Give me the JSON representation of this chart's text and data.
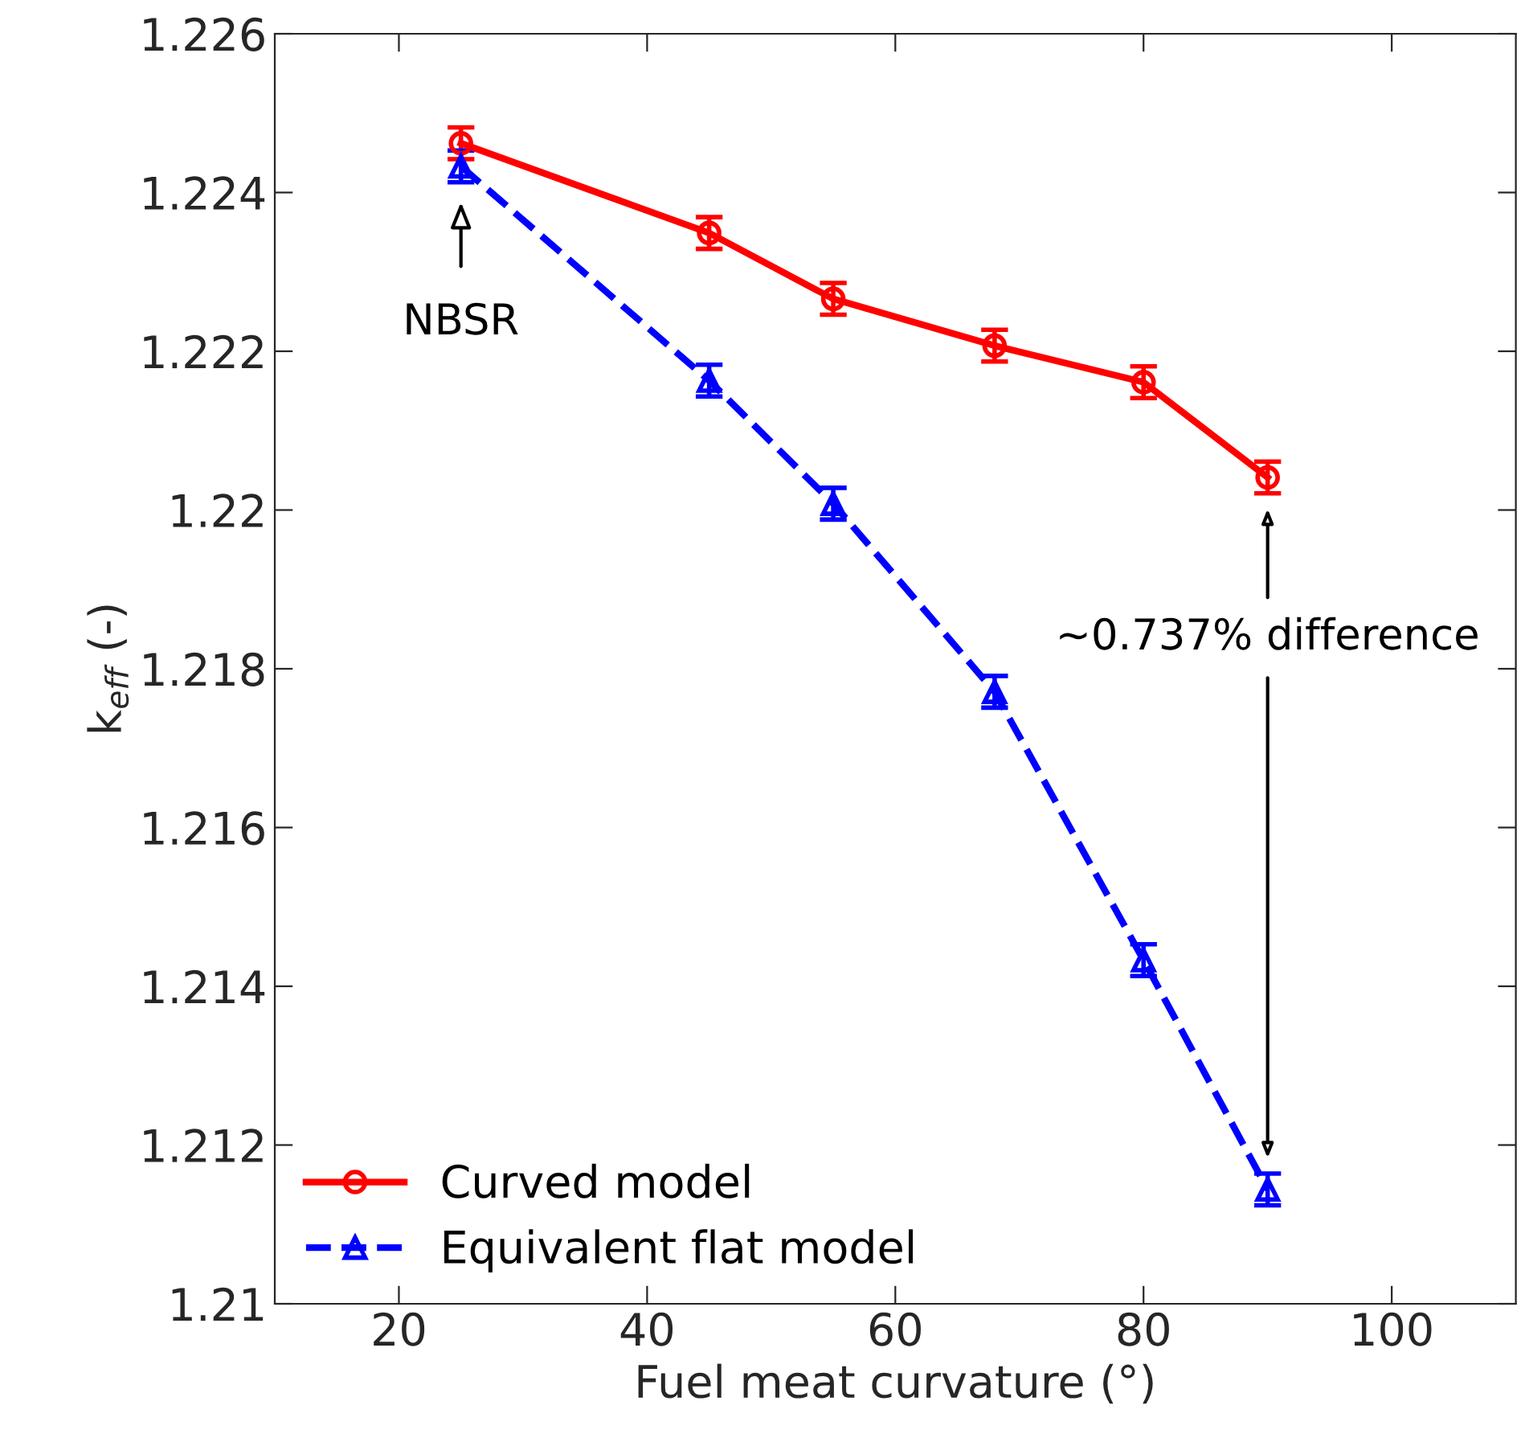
{
  "chart_data": {
    "type": "line",
    "xlabel": "Fuel meat curvature (°)",
    "ylabel": "k$_{eff}$ (-)",
    "x": [
      25,
      45,
      55,
      68,
      80,
      90
    ],
    "series": [
      {
        "name": "Curved model",
        "color": "#ff0000",
        "marker": "circle",
        "line_style": "solid",
        "values": [
          1.22462,
          1.22349,
          1.22266,
          1.22207,
          1.22161,
          1.22041
        ],
        "errors": [
          0.0002,
          0.0002,
          0.0002,
          0.0002,
          0.0002,
          0.0002
        ]
      },
      {
        "name": "Equivalent flat model",
        "color": "#0000ff",
        "marker": "triangle",
        "line_style": "dashed",
        "values": [
          1.22433,
          1.22163,
          1.22008,
          1.21771,
          1.21433,
          1.21144
        ],
        "errors": [
          0.0002,
          0.0002,
          0.0002,
          0.0002,
          0.0002,
          0.0002
        ]
      }
    ],
    "xlim": [
      10,
      110
    ],
    "xticks": [
      20,
      40,
      60,
      80,
      100
    ],
    "ylim": [
      1.21,
      1.226
    ],
    "yticks": [
      1.21,
      1.212,
      1.214,
      1.216,
      1.218,
      1.22,
      1.222,
      1.224,
      1.226
    ],
    "annotations": [
      "NBSR",
      "~0.737% difference"
    ],
    "legend": "bottom left",
    "grid": false
  }
}
